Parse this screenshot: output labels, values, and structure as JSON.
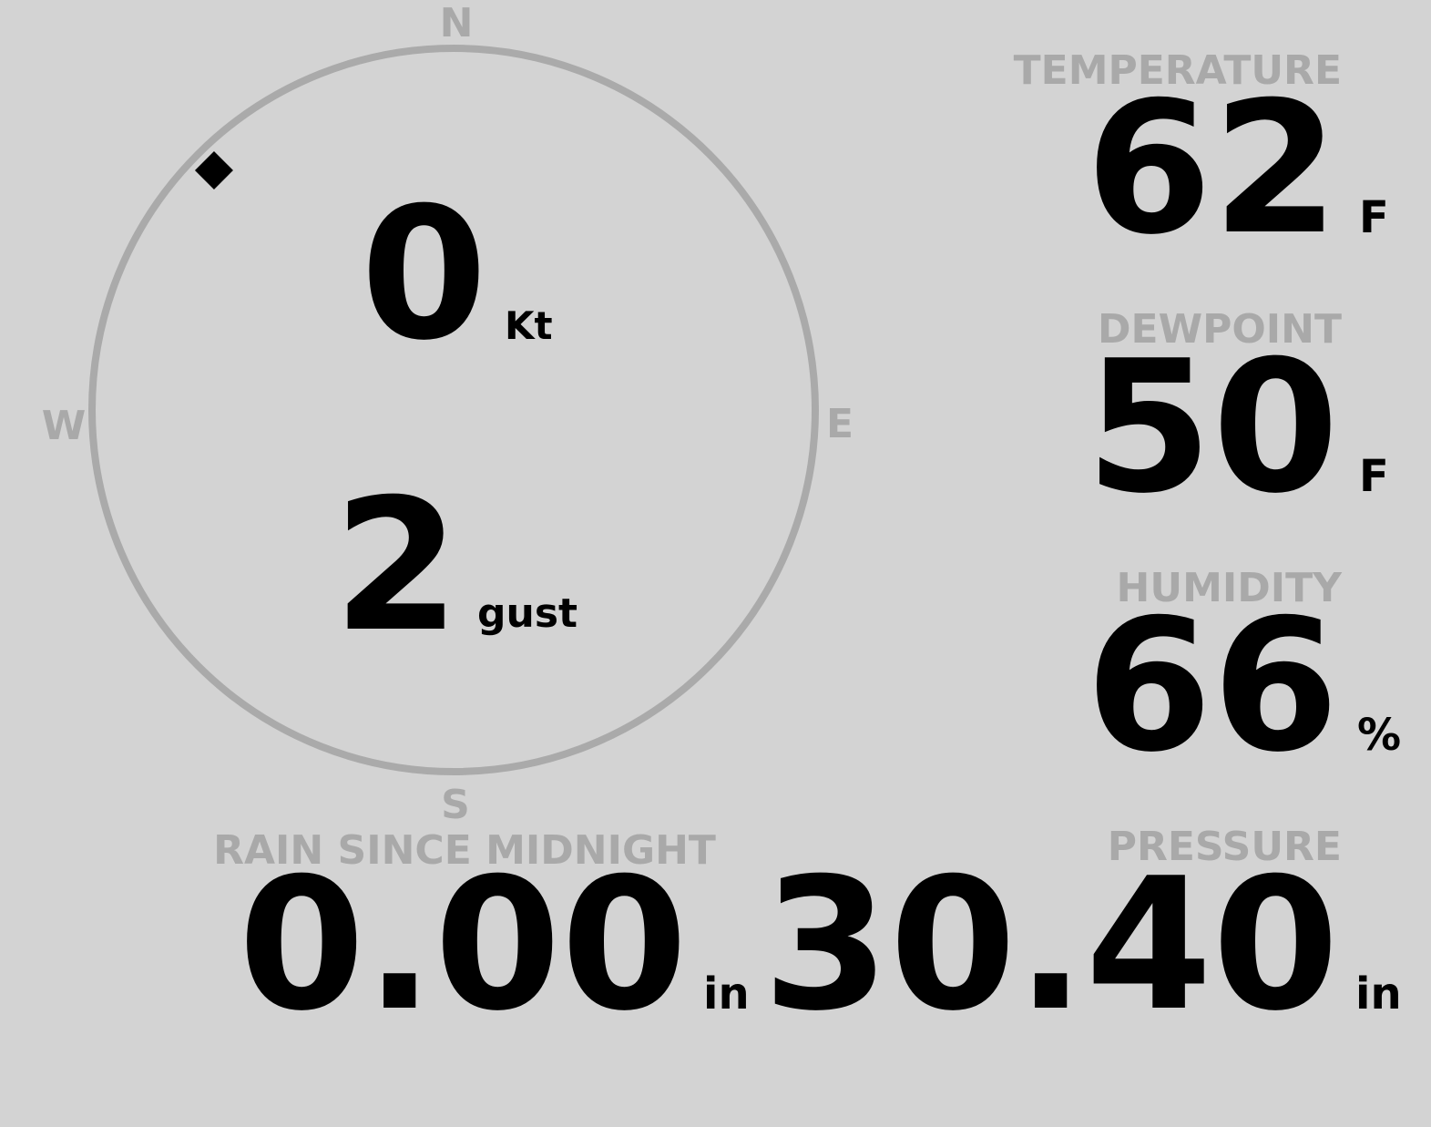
{
  "compass": {
    "n": "N",
    "e": "E",
    "s": "S",
    "w": "W"
  },
  "wind": {
    "speed": "0",
    "speed_unit": "Kt",
    "gust": "2",
    "gust_unit": "gust",
    "direction": 315
  },
  "readings": {
    "temperature": {
      "label": "TEMPERATURE",
      "value": "62",
      "unit": "F"
    },
    "dewpoint": {
      "label": "DEWPOINT",
      "value": "50",
      "unit": "F"
    },
    "humidity": {
      "label": "HUMIDITY",
      "value": "66",
      "unit": "%"
    },
    "rain": {
      "label": "RAIN SINCE MIDNIGHT",
      "value": "0.00",
      "unit": "in"
    },
    "pressure": {
      "label": "PRESSURE",
      "value": "30.40",
      "unit": "in"
    }
  }
}
